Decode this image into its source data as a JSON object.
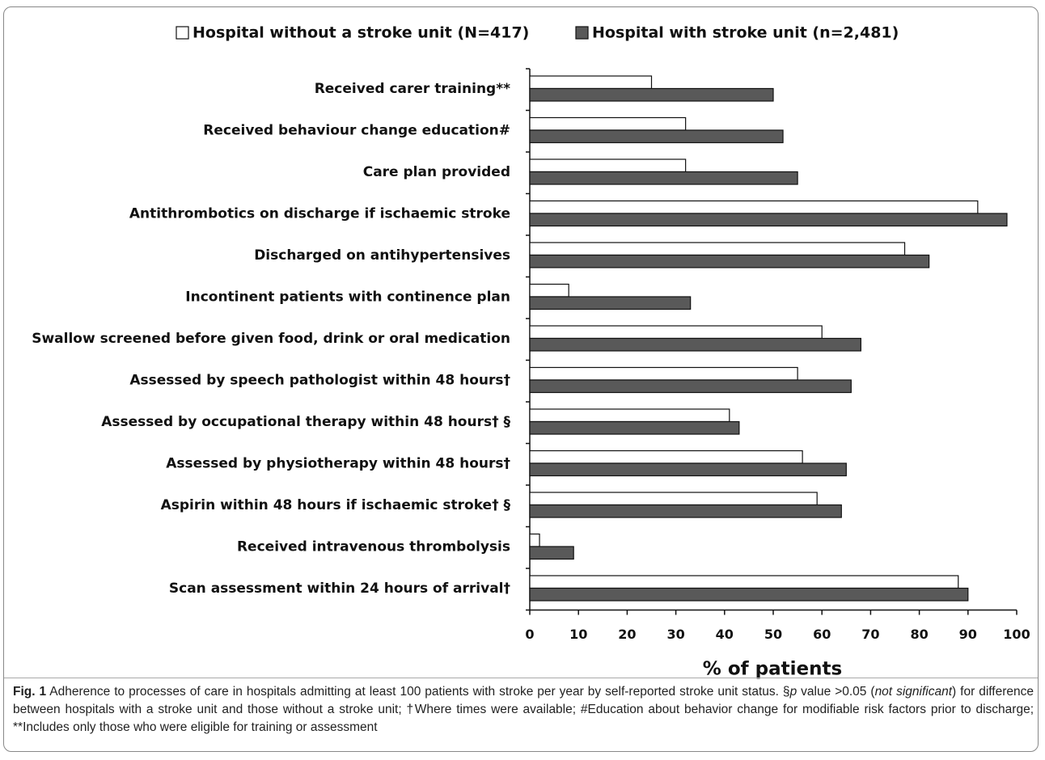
{
  "chart_data": {
    "type": "hbar",
    "categories": [
      "Received carer training**",
      "Received behaviour change education#",
      "Care plan provided",
      "Antithrombotics on discharge if ischaemic stroke",
      "Discharged on antihypertensives",
      "Incontinent patients with continence plan",
      "Swallow screened before given food, drink or oral medication",
      "Assessed by speech pathologist within 48 hours†",
      "Assessed by occupational therapy within 48 hours† §",
      "Assessed by physiotherapy within 48 hours†",
      "Aspirin within 48 hours if ischaemic stroke† §",
      "Received intravenous thrombolysis",
      "Scan assessment within 24 hours of arrival†"
    ],
    "series": [
      {
        "name": "Hospital without a stroke unit (N=417)",
        "color": "#ffffff",
        "values": [
          25,
          32,
          32,
          92,
          77,
          8,
          60,
          55,
          41,
          56,
          59,
          2,
          88
        ]
      },
      {
        "name": "Hospital with stroke unit (n=2,481)",
        "color": "#595959",
        "values": [
          50,
          52,
          55,
          98,
          82,
          33,
          68,
          66,
          43,
          65,
          64,
          9,
          90
        ]
      }
    ],
    "xlim": [
      0,
      100
    ],
    "xticks": [
      0,
      10,
      20,
      30,
      40,
      50,
      60,
      70,
      80,
      90,
      100
    ],
    "xlabel": "% of patients",
    "grid": false,
    "legend": "top"
  },
  "caption": [
    "Fig. 1",
    " Adherence to processes of care in hospitals admitting at least 100 patients with stroke per year by self-reported stroke unit status. §",
    "p",
    " value >0.05 (",
    "not significant",
    ") for difference between hospitals with a stroke unit and those without a stroke unit; †Where times were available; #Education about behavior change for modifiable risk factors prior to discharge; **Includes only those who were eligible for training or assessment"
  ]
}
